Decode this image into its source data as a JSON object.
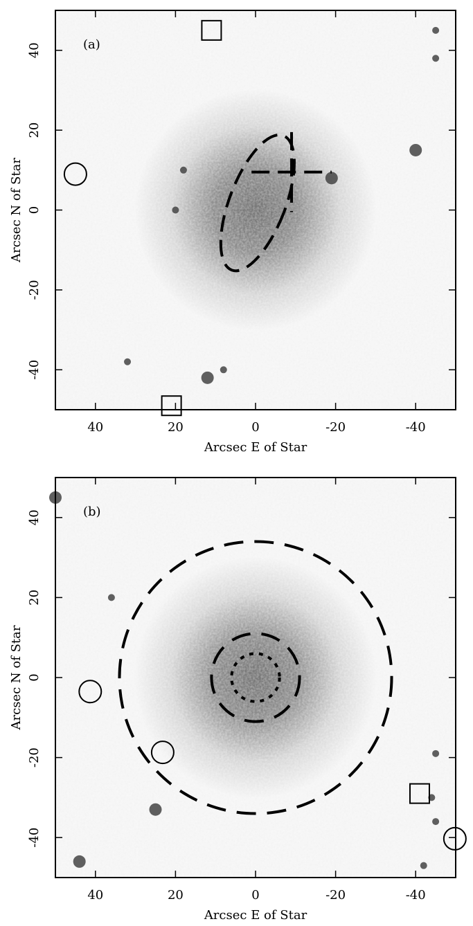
{
  "chart_data": [
    {
      "type": "image",
      "label": "(a)",
      "xlabel": "Arcsec E of Star",
      "ylabel": "Arcsec N of Star",
      "xlim": [
        50,
        -50
      ],
      "ylim": [
        -50,
        50
      ],
      "xticks": [
        40,
        20,
        0,
        -20,
        -40
      ],
      "yticks": [
        -40,
        -20,
        0,
        20,
        40
      ],
      "circles": {
        "x": [
          45
        ],
        "y": [
          9
        ]
      },
      "squares": {
        "x": [
          11,
          21
        ],
        "y": [
          45,
          -49
        ]
      },
      "crosses": [
        {
          "x": -9,
          "y": 9.5,
          "size": 10
        }
      ],
      "ellipses": [
        {
          "x": -0.5,
          "y": 1.8,
          "rx": 7,
          "ry": 18,
          "angle": 21
        }
      ],
      "rings": []
    },
    {
      "type": "image",
      "label": "(b)",
      "xlabel": "Arcsec E of Star",
      "ylabel": "Arcsec N of Star",
      "xlim": [
        50,
        -50
      ],
      "ylim": [
        -50,
        50
      ],
      "xticks": [
        40,
        20,
        0,
        -20,
        -40
      ],
      "yticks": [
        -40,
        -20,
        0,
        20,
        40
      ],
      "circles": {
        "x": [
          41.3,
          23.2,
          -49.8
        ],
        "y": [
          -3.5,
          -18.7,
          -40.3
        ]
      },
      "squares": {
        "x": [
          -41
        ],
        "y": [
          -29
        ]
      },
      "crosses": [],
      "ellipses": [],
      "rings": [
        {
          "x": 0,
          "y": 0,
          "r": 34,
          "style": "dashed"
        },
        {
          "x": 0,
          "y": 0,
          "r": 11,
          "style": "dashed"
        },
        {
          "x": 0,
          "y": 0,
          "r": 6,
          "style": "dotted"
        }
      ]
    }
  ]
}
